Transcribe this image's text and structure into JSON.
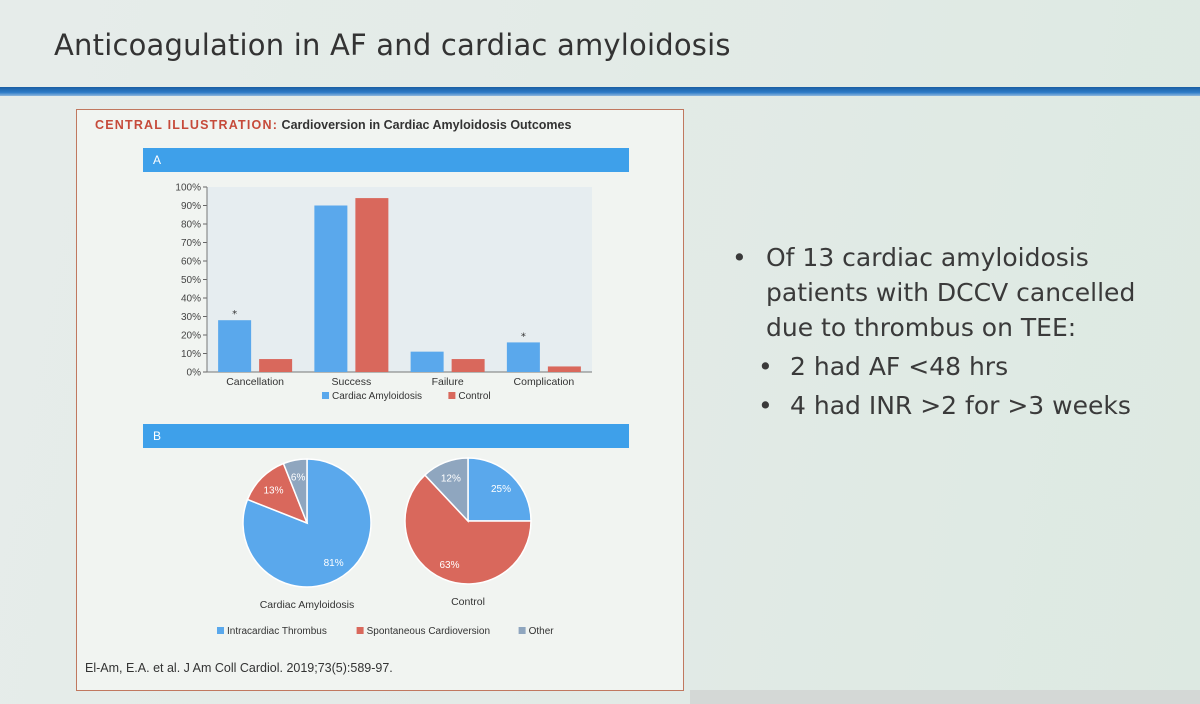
{
  "slide": {
    "title": "Anticoagulation in AF and cardiac amyloidosis",
    "bullets": {
      "main": "Of 13 cardiac amyloidosis patients with DCCV cancelled due to thrombus on TEE:",
      "sub": [
        "2 had AF <48 hrs",
        "4 had INR >2 for >3 weeks"
      ]
    }
  },
  "figure": {
    "header_label": "CENTRAL ILLUSTRATION:",
    "header_title": "Cardioversion in Cardiac Amyloidosis Outcomes",
    "panel_a": "A",
    "panel_b": "B",
    "citation": "El-Am, E.A. et al. J Am Coll Cardiol. 2019;73(5):589-97."
  },
  "colors": {
    "blue": "#5aa8ec",
    "red": "#d9685c",
    "gray": "#8fa6bf",
    "accent": "#3ea0ea"
  },
  "chart_data": [
    {
      "type": "bar",
      "categories": [
        "Cancellation",
        "Success",
        "Failure",
        "Complication"
      ],
      "series": [
        {
          "name": "Cardiac Amyloidosis",
          "values": [
            28,
            90,
            11,
            16
          ]
        },
        {
          "name": "Control",
          "values": [
            7,
            94,
            7,
            3
          ]
        }
      ],
      "significance_markers": [
        "*",
        "",
        "",
        "*"
      ],
      "y_ticks": [
        "0%",
        "10%",
        "20%",
        "30%",
        "40%",
        "50%",
        "60%",
        "70%",
        "80%",
        "90%",
        "100%"
      ],
      "ylim": [
        0,
        100
      ],
      "legend": "bottom"
    },
    {
      "type": "pie",
      "pies": [
        {
          "title": "Cardiac Amyloidosis",
          "slices": [
            {
              "label": "Intracardiac Thrombus",
              "value": 81,
              "text": "81%"
            },
            {
              "label": "Spontaneous Cardioversion",
              "value": 13,
              "text": "13%"
            },
            {
              "label": "Other",
              "value": 6,
              "text": "6%"
            }
          ]
        },
        {
          "title": "Control",
          "slices": [
            {
              "label": "Intracardiac Thrombus",
              "value": 25,
              "text": "25%"
            },
            {
              "label": "Spontaneous Cardioversion",
              "value": 63,
              "text": "63%"
            },
            {
              "label": "Other",
              "value": 12,
              "text": "12%"
            }
          ]
        }
      ],
      "legend_entries": [
        "Intracardiac Thrombus",
        "Spontaneous Cardioversion",
        "Other"
      ],
      "legend": "bottom"
    }
  ]
}
